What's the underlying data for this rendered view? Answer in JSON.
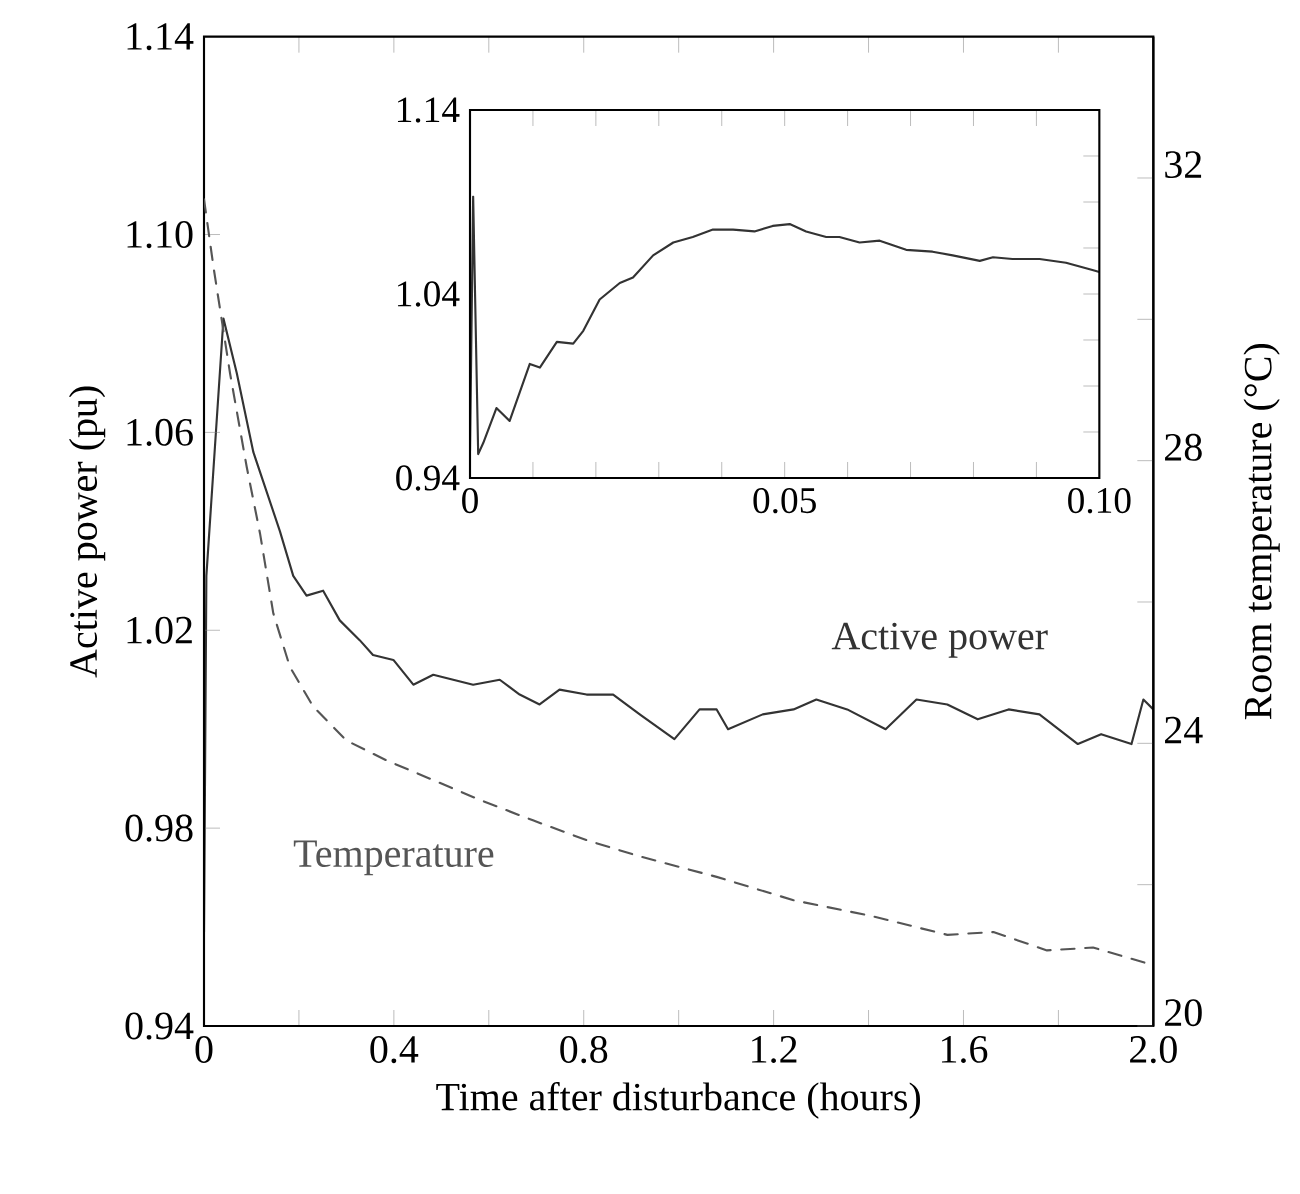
{
  "chart_data": [
    {
      "type": "line",
      "xlabel": "Time after disturbance (hours)",
      "ylabel": "Active power (pu)",
      "y2label": "Room temperature (°C)",
      "xlim": [
        0,
        2.0
      ],
      "xticks": [
        0,
        {
          "value": 0.2,
          "label": null
        },
        0.4,
        {
          "value": 0.6,
          "label": null
        },
        0.8,
        {
          "value": 1.0,
          "label": null
        },
        1.2,
        {
          "value": 1.4,
          "label": null
        },
        1.6,
        {
          "value": 1.8,
          "label": null
        },
        {
          "value": 2.0,
          "label": "2.0"
        }
      ],
      "ylim": [
        0.94,
        1.14
      ],
      "yticks": [
        0.94,
        0.98,
        1.02,
        1.06,
        {
          "value": 1.1,
          "label": "1.10"
        },
        1.14
      ],
      "y2lim": [
        20,
        34
      ],
      "y2ticks": [
        20,
        {
          "value": 22,
          "label": null
        },
        24,
        {
          "value": 26,
          "label": null
        },
        28,
        {
          "value": 30,
          "label": null
        },
        32
      ],
      "marker": "none",
      "series": [
        {
          "name": "Active power",
          "color": "#333333",
          "line_style": "solid",
          "x": [
            0,
            0.005,
            0.041,
            0.069,
            0.104,
            0.125,
            0.16,
            0.188,
            0.216,
            0.251,
            0.286,
            0.328,
            0.356,
            0.399,
            0.441,
            0.483,
            0.525,
            0.567,
            0.623,
            0.665,
            0.707,
            0.749,
            0.806,
            0.862,
            0.918,
            0.991,
            1.044,
            1.08,
            1.104,
            1.177,
            1.242,
            1.29,
            1.355,
            1.436,
            1.501,
            1.566,
            1.63,
            1.695,
            1.76,
            1.841,
            1.89,
            1.954,
            1.979,
            2.0
          ],
          "values": [
            0.959,
            1.031,
            1.083,
            1.072,
            1.056,
            1.05,
            1.04,
            1.031,
            1.027,
            1.028,
            1.022,
            1.018,
            1.015,
            1.014,
            1.009,
            1.011,
            1.01,
            1.009,
            1.01,
            1.007,
            1.005,
            1.008,
            1.007,
            1.007,
            1.003,
            0.998,
            1.004,
            1.004,
            1.0,
            1.003,
            1.004,
            1.006,
            1.004,
            1.0,
            1.006,
            1.005,
            1.002,
            1.004,
            1.003,
            0.997,
            0.999,
            0.997,
            1.006,
            1.004
          ]
        },
        {
          "name": "Temperature",
          "color": "#555555",
          "line_style": "dashed",
          "axis": "y2",
          "x": [
            0,
            0.02,
            0.055,
            0.09,
            0.118,
            0.146,
            0.181,
            0.23,
            0.3,
            0.384,
            0.483,
            0.581,
            0.693,
            0.806,
            0.918,
            1.08,
            1.242,
            1.404,
            1.566,
            1.663,
            1.776,
            1.873,
            2.0
          ],
          "values": [
            31.7,
            30.74,
            29.23,
            27.91,
            26.97,
            25.84,
            25.08,
            24.52,
            24.04,
            23.76,
            23.48,
            23.2,
            22.91,
            22.63,
            22.4,
            22.11,
            21.78,
            21.56,
            21.29,
            21.33,
            21.07,
            21.11,
            20.86
          ]
        }
      ]
    },
    {
      "type": "line",
      "xlim": [
        0,
        0.1
      ],
      "xticks": [
        0,
        {
          "value": 0.01,
          "label": null
        },
        {
          "value": 0.02,
          "label": null
        },
        {
          "value": 0.03,
          "label": null
        },
        {
          "value": 0.04,
          "label": null
        },
        0.05,
        {
          "value": 0.06,
          "label": null
        },
        {
          "value": 0.07,
          "label": null
        },
        {
          "value": 0.08,
          "label": null
        },
        {
          "value": 0.09,
          "label": null
        },
        {
          "value": 0.1,
          "label": "0.10"
        }
      ],
      "ylim": [
        0.94,
        1.14
      ],
      "yticks": [
        0.94,
        {
          "value": 0.965,
          "label": null
        },
        {
          "value": 0.99,
          "label": null
        },
        {
          "value": 1.015,
          "label": null
        },
        1.04,
        {
          "value": 1.065,
          "label": null
        },
        {
          "value": 1.09,
          "label": null
        },
        {
          "value": 1.115,
          "label": null
        },
        1.14
      ],
      "marker": "none",
      "series": [
        {
          "color": "#333333",
          "line_style": "solid",
          "x": [
            0,
            0.0005,
            0.0013,
            0.0021,
            0.0042,
            0.0063,
            0.0095,
            0.0111,
            0.0138,
            0.0164,
            0.018,
            0.0206,
            0.0238,
            0.0259,
            0.0291,
            0.0323,
            0.0354,
            0.0386,
            0.0418,
            0.0452,
            0.0481,
            0.0508,
            0.0534,
            0.0566,
            0.0587,
            0.0619,
            0.0651,
            0.0693,
            0.0735,
            0.0767,
            0.081,
            0.0831,
            0.0862,
            0.0905,
            0.0947,
            0.0989,
            0.1
          ],
          "values": [
            0.955,
            1.093,
            0.953,
            0.959,
            0.978,
            0.971,
            1.002,
            1.0,
            1.014,
            1.013,
            1.02,
            1.037,
            1.046,
            1.049,
            1.061,
            1.068,
            1.071,
            1.075,
            1.075,
            1.074,
            1.077,
            1.078,
            1.074,
            1.071,
            1.071,
            1.068,
            1.069,
            1.064,
            1.063,
            1.061,
            1.058,
            1.06,
            1.059,
            1.059,
            1.057,
            1.053,
            1.052
          ]
        }
      ]
    }
  ]
}
